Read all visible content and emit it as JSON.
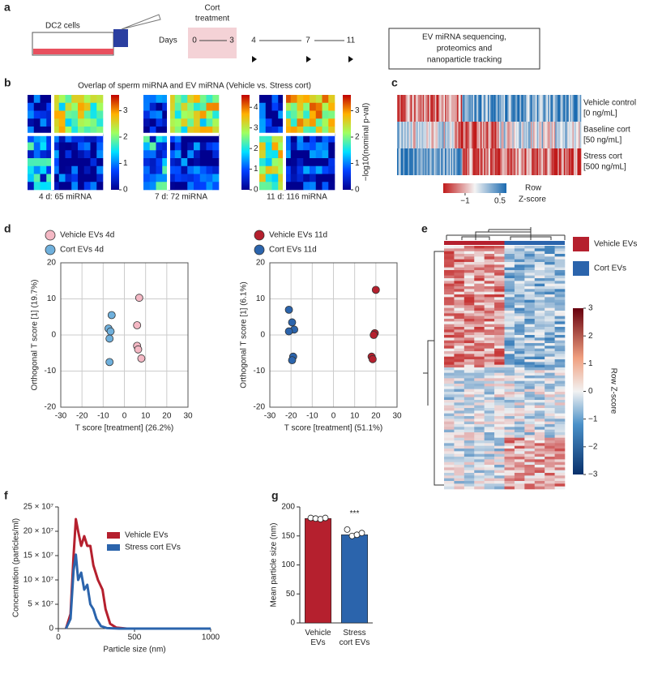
{
  "panels": {
    "a": {
      "label": "a",
      "cell_label": "DC2 cells",
      "heading": [
        "Cort",
        "treatment"
      ],
      "days_label": "Days",
      "days": [
        0,
        3,
        4,
        7,
        11
      ],
      "box_lines": [
        "EV miRNA sequencing,",
        "proteomics and",
        "nanoparticle tracking"
      ]
    },
    "b": {
      "label": "b",
      "title": "Overlap of sperm miRNA and EV miRNA (Vehicle vs. Stress cort)",
      "colorbar_label": "−log10(nominal p-val)",
      "heatmaps": [
        {
          "caption": "4 d: 65 miRNA",
          "colorbar_lim": [
            0,
            3.6
          ],
          "colorbar_ticks": [
            0,
            1,
            2,
            3
          ]
        },
        {
          "caption": "7 d: 72 miRNA",
          "colorbar_lim": [
            0,
            4.6
          ],
          "colorbar_ticks": [
            0,
            1,
            2,
            3,
            4
          ]
        },
        {
          "caption": "11 d: 116 miRNA",
          "colorbar_lim": [
            0,
            3.6
          ],
          "colorbar_ticks": [
            0,
            1,
            2,
            3
          ]
        }
      ]
    },
    "c": {
      "label": "c",
      "rows": [
        [
          "Vehicle control",
          "[0 ng/mL]"
        ],
        [
          "Baseline cort",
          "[50 ng/mL]"
        ],
        [
          "Stress cort",
          "[500 ng/mL]"
        ]
      ],
      "colorbar_lim": [
        -1.94,
        0.78
      ],
      "colorbar_ticks": [
        {
          "value": -1,
          "label": "−1"
        },
        0.5
      ],
      "colorbar_label": [
        "Row",
        "Z-score"
      ]
    },
    "d": {
      "label": "d"
    },
    "e": {
      "label": "e",
      "legend": [
        {
          "name": "Vehicle EVs",
          "color": "#b5202e"
        },
        {
          "name": "Cort EVs",
          "color": "#2b64ac"
        }
      ],
      "colorbar_lim": [
        -3,
        3
      ],
      "colorbar_ticks": [
        3,
        2,
        1,
        0,
        {
          "value": -1,
          "label": "−1"
        },
        {
          "value": -2,
          "label": "−2"
        },
        {
          "value": -3,
          "label": "−3"
        }
      ],
      "colorbar_label": "Row Z-score"
    },
    "f": {
      "label": "f"
    },
    "g": {
      "label": "g"
    }
  },
  "chart_data": [
    {
      "type": "scatter",
      "xlabel": "T score [treatment] (26.2%)",
      "ylabel": "Orthogonal T score [1] (19.7%)",
      "xlim": [
        -30,
        30
      ],
      "ylim": [
        -20,
        20
      ],
      "xticks": [
        -30,
        -20,
        -10,
        0,
        10,
        20,
        30
      ],
      "yticks": [
        -20,
        -10,
        0,
        10,
        20
      ],
      "grid": true,
      "series": [
        {
          "name": "Vehicle EVs 4d",
          "color": "#f4b8c4",
          "x": [
            7,
            6,
            6,
            6.5,
            8
          ],
          "y": [
            10.3,
            2.7,
            -3,
            -4,
            -6.5
          ]
        },
        {
          "name": "Cort EVs 4d",
          "color": "#6fb0dc",
          "x": [
            -6,
            -7.5,
            -6.5,
            -7,
            -7
          ],
          "y": [
            5.5,
            1.8,
            1,
            -1,
            -7.5
          ]
        }
      ]
    },
    {
      "type": "scatter",
      "xlabel": "T score [treatment] (51.1%)",
      "ylabel": "Orthogonal T score [1] (6.1%)",
      "xlim": [
        -30,
        30
      ],
      "ylim": [
        -20,
        20
      ],
      "xticks": [
        -30,
        -20,
        -10,
        0,
        10,
        20,
        30
      ],
      "yticks": [
        -20,
        -10,
        0,
        10,
        20
      ],
      "grid": true,
      "series": [
        {
          "name": "Vehicle EVs 11d",
          "color": "#b5202e",
          "x": [
            20,
            19.5,
            19,
            18,
            18.5
          ],
          "y": [
            12.5,
            0.5,
            0,
            -6,
            -6.7
          ]
        },
        {
          "name": "Cort EVs 11d",
          "color": "#2b64ac",
          "x": [
            -21,
            -19.5,
            -18.5,
            -21,
            -19,
            -19.5
          ],
          "y": [
            7,
            3.5,
            1.5,
            1,
            -6,
            -7
          ]
        }
      ]
    },
    {
      "type": "line",
      "xlabel": "Particle size (nm)",
      "ylabel": "Concentration (particles/ml)",
      "xlim": [
        0,
        1000
      ],
      "ylim": [
        0,
        250000000
      ],
      "xticks": [
        0,
        500,
        1000
      ],
      "yticks": [
        0,
        {
          "value": 50000000,
          "label": "5 × 10⁷"
        },
        {
          "value": 100000000,
          "label": "10 × 10⁷"
        },
        {
          "value": 150000000,
          "label": "15 × 10⁷"
        },
        {
          "value": 200000000,
          "label": "20 × 10⁷"
        },
        {
          "value": 250000000,
          "label": "25 × 10⁷"
        }
      ],
      "series": [
        {
          "name": "Vehicle EVs",
          "color": "#b5202e",
          "x": [
            50,
            80,
            100,
            115,
            130,
            150,
            170,
            190,
            210,
            230,
            260,
            290,
            310,
            340,
            380,
            450,
            1000
          ],
          "y": [
            0,
            30000000,
            150000000,
            225000000,
            200000000,
            170000000,
            190000000,
            170000000,
            170000000,
            130000000,
            100000000,
            80000000,
            40000000,
            10000000,
            2000000,
            0,
            0
          ]
        },
        {
          "name": "Stress cort EVs",
          "color": "#2b64ac",
          "x": [
            50,
            80,
            100,
            115,
            130,
            150,
            170,
            190,
            210,
            230,
            250,
            280,
            320,
            400,
            1000
          ],
          "y": [
            0,
            20000000,
            120000000,
            152000000,
            100000000,
            115000000,
            80000000,
            90000000,
            50000000,
            40000000,
            20000000,
            5000000,
            1000000,
            0,
            0
          ]
        }
      ]
    },
    {
      "type": "bar",
      "ylabel": "Mean particle size (nm)",
      "ylim": [
        0,
        200
      ],
      "yticks": [
        0,
        50,
        100,
        150,
        200
      ],
      "categories": [
        "Vehicle EVs",
        "Stress cort EVs"
      ],
      "values": [
        180,
        152
      ],
      "errors": [
        1.5,
        3
      ],
      "colors": [
        "#b5202e",
        "#2b64ac"
      ],
      "points": [
        [
          181,
          180,
          179,
          181
        ],
        [
          161,
          150,
          152,
          155
        ]
      ],
      "annotation": "***"
    }
  ]
}
